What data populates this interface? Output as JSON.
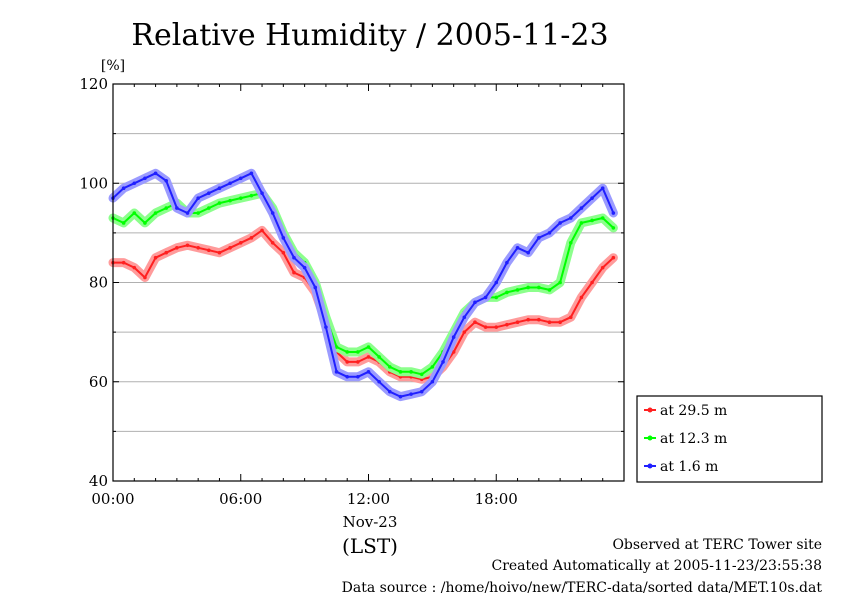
{
  "chart_data": {
    "type": "line",
    "title": "Relative Humidity / 2005-11-23",
    "y_unit": "[%]",
    "ylim": [
      40,
      120
    ],
    "y_ticks": [
      "40",
      "60",
      "80",
      "100",
      "120"
    ],
    "xlim": [
      0,
      24
    ],
    "x_ticks": [
      {
        "x": 0,
        "label": "00:00"
      },
      {
        "x": 6,
        "label": "06:00"
      },
      {
        "x": 12,
        "label": "12:00"
      },
      {
        "x": 18,
        "label": "18:00"
      }
    ],
    "date_label": "Nov-23",
    "xlabel": "(LST)",
    "grid": true,
    "legend_position": "right",
    "series": [
      {
        "name": "at 29.5 m",
        "color": "#ff2020",
        "x": [
          0,
          0.5,
          1,
          1.5,
          2,
          2.5,
          3,
          3.5,
          4,
          4.5,
          5,
          5.5,
          6,
          6.5,
          7,
          7.5,
          8,
          8.5,
          9,
          9.5,
          10,
          10.5,
          11,
          11.5,
          12,
          12.5,
          13,
          13.5,
          14,
          14.5,
          15,
          15.5,
          16,
          16.5,
          17,
          17.5,
          18,
          18.5,
          19,
          19.5,
          20,
          20.5,
          21,
          21.5,
          22,
          22.5,
          23,
          23.5
        ],
        "values": [
          84,
          84,
          83,
          81,
          85,
          86,
          87,
          87.5,
          87,
          86.5,
          86,
          87,
          88,
          89,
          90.5,
          88,
          86,
          82,
          81,
          78,
          72,
          66,
          64,
          64,
          65,
          64,
          62,
          61,
          61,
          60.5,
          61,
          63,
          66,
          70,
          72,
          71,
          71,
          71.5,
          72,
          72.5,
          72.5,
          72,
          72,
          73,
          77,
          80,
          83,
          85
        ]
      },
      {
        "name": "at 12.3 m",
        "color": "#00ff00",
        "x": [
          0,
          0.5,
          1,
          1.5,
          2,
          2.5,
          3,
          3.5,
          4,
          4.5,
          5,
          5.5,
          6,
          6.5,
          7,
          7.5,
          8,
          8.5,
          9,
          9.5,
          10,
          10.5,
          11,
          11.5,
          12,
          12.5,
          13,
          13.5,
          14,
          14.5,
          15,
          15.5,
          16,
          16.5,
          17,
          17.5,
          18,
          18.5,
          19,
          19.5,
          20,
          20.5,
          21,
          21.5,
          22,
          22.5,
          23,
          23.5
        ],
        "values": [
          93,
          92,
          94,
          92,
          94,
          95,
          96,
          94,
          94,
          95,
          96,
          96.5,
          97,
          97.5,
          98,
          95,
          90,
          86,
          84,
          80,
          73,
          67,
          66,
          66,
          67,
          65,
          63,
          62,
          62,
          61.5,
          63,
          66,
          70,
          74,
          76,
          77,
          77,
          78,
          78.5,
          79,
          79,
          78.5,
          80,
          88,
          92,
          92.5,
          93,
          91
        ]
      },
      {
        "name": "at 1.6 m",
        "color": "#2020ff",
        "x": [
          0,
          0.5,
          1,
          1.5,
          2,
          2.5,
          3,
          3.5,
          4,
          4.5,
          5,
          5.5,
          6,
          6.5,
          7,
          7.5,
          8,
          8.5,
          9,
          9.5,
          10,
          10.5,
          11,
          11.5,
          12,
          12.5,
          13,
          13.5,
          14,
          14.5,
          15,
          15.5,
          16,
          16.5,
          17,
          17.5,
          18,
          18.5,
          19,
          19.5,
          20,
          20.5,
          21,
          21.5,
          22,
          22.5,
          23,
          23.5
        ],
        "values": [
          97,
          99,
          100,
          101,
          102,
          100.5,
          95,
          94,
          97,
          98,
          99,
          100,
          101,
          102,
          98,
          94,
          89,
          85,
          83,
          79,
          71,
          62,
          61,
          61,
          62,
          60,
          58,
          57,
          57.5,
          58,
          60,
          64,
          69,
          73,
          76,
          77,
          80,
          84,
          87,
          86,
          89,
          90,
          92,
          93,
          95,
          97,
          99,
          94
        ]
      }
    ]
  },
  "footer": {
    "line1": "Observed at TERC Tower site",
    "line2": "Created Automatically at 2005-11-23/23:55:38",
    "line3": "Data source : /home/hoivo/new/TERC-data/sorted  data/MET.10s.dat"
  }
}
